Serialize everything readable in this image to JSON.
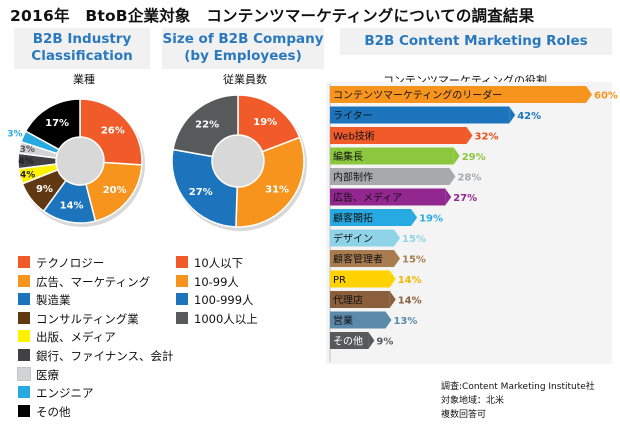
{
  "page": {
    "title": "2016年　BtoB企業対象　コンテンツマーケティングについての調査結果"
  },
  "sections": {
    "industry_heading": [
      "B2B Industry",
      "Classification"
    ],
    "size_heading": [
      "Size of B2B Company",
      "(by Employees)"
    ],
    "roles_heading": "B2B Content Marketing Roles",
    "industry_sub": "業種",
    "size_sub": "従業員数",
    "roles_sub": "コンテンツマーケティングの役割"
  },
  "legend_industry": [
    {
      "label": "テクノロジー",
      "color": "#f15a29"
    },
    {
      "label": "広告、マーケティング",
      "color": "#f7941d"
    },
    {
      "label": "製造業",
      "color": "#1c75bc"
    },
    {
      "label": "コンサルティング業",
      "color": "#603913"
    },
    {
      "label": "出版、メディア",
      "color": "#fff200"
    },
    {
      "label": "銀行、ファイナンス、会計",
      "color": "#414042"
    },
    {
      "label": "医療",
      "color": "#d1d3d4"
    },
    {
      "label": "エンジニア",
      "color": "#27aae1"
    },
    {
      "label": "その他",
      "color": "#000000"
    }
  ],
  "legend_size": [
    {
      "label": "10人以下",
      "color": "#f15a29"
    },
    {
      "label": "10-99人",
      "color": "#f7941d"
    },
    {
      "label": "100-999人",
      "color": "#1c75bc"
    },
    {
      "label": "1000人以上",
      "color": "#58595b"
    }
  ],
  "notes": [
    "調査:Content Marketing Institute社",
    "対象地域：北米",
    "複数回答可"
  ],
  "chart_data": [
    {
      "type": "pie",
      "title": "B2B Industry Classification",
      "subtitle": "業種",
      "categories": [
        "テクノロジー",
        "広告、マーケティング",
        "製造業",
        "コンサルティング業",
        "出版、メディア",
        "銀行、ファイナンス、会計",
        "医療",
        "エンジニア",
        "その他"
      ],
      "values": [
        26,
        20,
        14,
        9,
        4,
        4,
        3,
        3,
        17
      ],
      "labels": [
        "26%",
        "20%",
        "14%",
        "9%",
        "4%",
        "4%",
        "3%",
        "3%",
        "17%"
      ],
      "colors": [
        "#f15a29",
        "#f7941d",
        "#1c75bc",
        "#603913",
        "#fff200",
        "#414042",
        "#d1d3d4",
        "#27aae1",
        "#000000"
      ],
      "label_colors": [
        "#ffffff",
        "#ffffff",
        "#ffffff",
        "#ffffff",
        "#222222",
        "#222222",
        "#555555",
        "#27aae1",
        "#ffffff"
      ]
    },
    {
      "type": "pie",
      "title": "Size of B2B Company (by Employees)",
      "subtitle": "従業員数",
      "categories": [
        "10人以下",
        "10-99人",
        "100-999人",
        "1000人以上"
      ],
      "values": [
        19,
        31,
        27,
        22
      ],
      "labels": [
        "19%",
        "31%",
        "27%",
        "22%"
      ],
      "colors": [
        "#f15a29",
        "#f7941d",
        "#1c75bc",
        "#58595b"
      ],
      "label_colors": [
        "#ffffff",
        "#ffffff",
        "#ffffff",
        "#ffffff"
      ]
    },
    {
      "type": "bar",
      "orientation": "horizontal",
      "title": "B2B Content Marketing Roles",
      "subtitle": "コンテンツマーケティングの役割",
      "categories": [
        "コンテンツマーケティングのリーダー",
        "ライター",
        "Web技術",
        "編集長",
        "内部制作",
        "広告、メディア",
        "顧客開拓",
        "デザイン",
        "顧客管理者",
        "PR",
        "代理店",
        "営業",
        "その他"
      ],
      "values": [
        60,
        42,
        32,
        29,
        28,
        27,
        19,
        15,
        15,
        14,
        14,
        13,
        9
      ],
      "labels": [
        "60%",
        "42%",
        "32%",
        "29%",
        "28%",
        "27%",
        "19%",
        "15%",
        "15%",
        "14%",
        "14%",
        "13%",
        "9%"
      ],
      "colors": [
        "#f7941d",
        "#1c75bc",
        "#f15a29",
        "#8dc63f",
        "#a7a9ac",
        "#92278f",
        "#27aae1",
        "#8fd3e8",
        "#a97c50",
        "#ffd200",
        "#8b5e3c",
        "#5b8aab",
        "#58595b"
      ],
      "value_label_colors": [
        "#f7941d",
        "#1c75bc",
        "#e8501c",
        "#8dc63f",
        "#a7a9ac",
        "#92278f",
        "#27aae1",
        "#8fd3e8",
        "#a97c50",
        "#f2b600",
        "#8b5e3c",
        "#5b8aab",
        "#58595b"
      ],
      "xlim": [
        0,
        60
      ]
    }
  ]
}
